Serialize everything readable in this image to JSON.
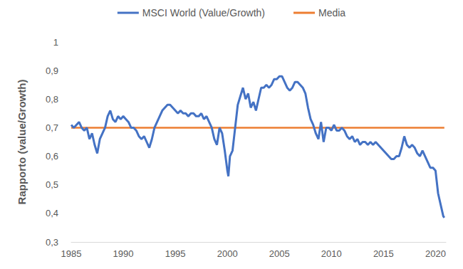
{
  "chart_data": {
    "type": "line",
    "y_label": "Rapporto (value/Growth)",
    "x": [
      1985,
      1985.25,
      1985.5,
      1985.75,
      1986,
      1986.25,
      1986.5,
      1986.75,
      1987,
      1987.25,
      1987.5,
      1987.75,
      1988,
      1988.25,
      1988.5,
      1988.75,
      1989,
      1989.25,
      1989.5,
      1989.75,
      1990,
      1990.25,
      1990.5,
      1990.75,
      1991,
      1991.25,
      1991.5,
      1991.75,
      1992,
      1992.25,
      1992.5,
      1992.75,
      1993,
      1993.25,
      1993.5,
      1993.75,
      1994,
      1994.25,
      1994.5,
      1994.75,
      1995,
      1995.25,
      1995.5,
      1995.75,
      1996,
      1996.25,
      1996.5,
      1996.75,
      1997,
      1997.25,
      1997.5,
      1997.75,
      1998,
      1998.25,
      1998.5,
      1998.75,
      1999,
      1999.25,
      1999.5,
      1999.75,
      2000,
      2000.1,
      2000.25,
      2000.5,
      2000.75,
      2001,
      2001.25,
      2001.5,
      2001.75,
      2002,
      2002.25,
      2002.5,
      2002.75,
      2003,
      2003.25,
      2003.5,
      2003.75,
      2004,
      2004.25,
      2004.5,
      2004.75,
      2005,
      2005.25,
      2005.5,
      2005.75,
      2006,
      2006.25,
      2006.5,
      2006.75,
      2007,
      2007.25,
      2007.5,
      2007.75,
      2008,
      2008.25,
      2008.5,
      2008.75,
      2009,
      2009.25,
      2009.5,
      2009.75,
      2010,
      2010.25,
      2010.5,
      2010.75,
      2011,
      2011.25,
      2011.5,
      2011.75,
      2012,
      2012.25,
      2012.5,
      2012.75,
      2013,
      2013.25,
      2013.5,
      2013.75,
      2014,
      2014.25,
      2014.5,
      2014.75,
      2015,
      2015.25,
      2015.5,
      2015.75,
      2016,
      2016.25,
      2016.5,
      2016.75,
      2017,
      2017.25,
      2017.5,
      2017.75,
      2018,
      2018.25,
      2018.5,
      2018.75,
      2019,
      2019.25,
      2019.5,
      2019.75,
      2020,
      2020.25,
      2020.5,
      2020.75,
      2020.85
    ],
    "series": [
      {
        "name": "MSCI World (Value/Growth)",
        "color": "#4472C4",
        "values": [
          0.71,
          0.7,
          0.71,
          0.72,
          0.7,
          0.69,
          0.7,
          0.66,
          0.68,
          0.64,
          0.61,
          0.66,
          0.68,
          0.7,
          0.74,
          0.76,
          0.73,
          0.72,
          0.74,
          0.73,
          0.74,
          0.73,
          0.72,
          0.7,
          0.7,
          0.69,
          0.67,
          0.66,
          0.67,
          0.65,
          0.63,
          0.66,
          0.7,
          0.72,
          0.74,
          0.76,
          0.77,
          0.78,
          0.78,
          0.77,
          0.76,
          0.75,
          0.76,
          0.75,
          0.75,
          0.74,
          0.75,
          0.75,
          0.74,
          0.74,
          0.75,
          0.73,
          0.74,
          0.72,
          0.7,
          0.66,
          0.64,
          0.7,
          0.68,
          0.62,
          0.55,
          0.53,
          0.6,
          0.62,
          0.7,
          0.78,
          0.81,
          0.84,
          0.8,
          0.82,
          0.77,
          0.79,
          0.76,
          0.8,
          0.84,
          0.84,
          0.85,
          0.84,
          0.85,
          0.87,
          0.87,
          0.88,
          0.88,
          0.86,
          0.84,
          0.83,
          0.84,
          0.86,
          0.86,
          0.85,
          0.84,
          0.82,
          0.77,
          0.73,
          0.71,
          0.68,
          0.66,
          0.72,
          0.65,
          0.7,
          0.7,
          0.69,
          0.71,
          0.69,
          0.69,
          0.7,
          0.69,
          0.67,
          0.66,
          0.67,
          0.65,
          0.66,
          0.64,
          0.65,
          0.65,
          0.64,
          0.65,
          0.64,
          0.65,
          0.64,
          0.63,
          0.62,
          0.61,
          0.6,
          0.59,
          0.59,
          0.6,
          0.6,
          0.63,
          0.67,
          0.64,
          0.63,
          0.64,
          0.63,
          0.61,
          0.6,
          0.62,
          0.6,
          0.58,
          0.56,
          0.56,
          0.55,
          0.47,
          0.43,
          0.39,
          0.385
        ]
      },
      {
        "name": "Media",
        "color": "#ED7D31",
        "x": [
          1985,
          2020.85
        ],
        "values": [
          0.7,
          0.7
        ]
      }
    ],
    "xlim": [
      1985,
      2021
    ],
    "xticks": [
      1985,
      1990,
      1995,
      2000,
      2005,
      2010,
      2015,
      2020
    ],
    "ylim": [
      0.3,
      1
    ],
    "yticks": [
      {
        "value": 0.3,
        "label": "0,3"
      },
      {
        "value": 0.4,
        "label": "0,4"
      },
      {
        "value": 0.5,
        "label": "0,5"
      },
      {
        "value": 0.6,
        "label": "0,6"
      },
      {
        "value": 0.7,
        "label": "0,7"
      },
      {
        "value": 0.8,
        "label": "0,8"
      },
      {
        "value": 0.9,
        "label": "0,9"
      },
      1
    ],
    "grid": false,
    "legend": "top"
  }
}
